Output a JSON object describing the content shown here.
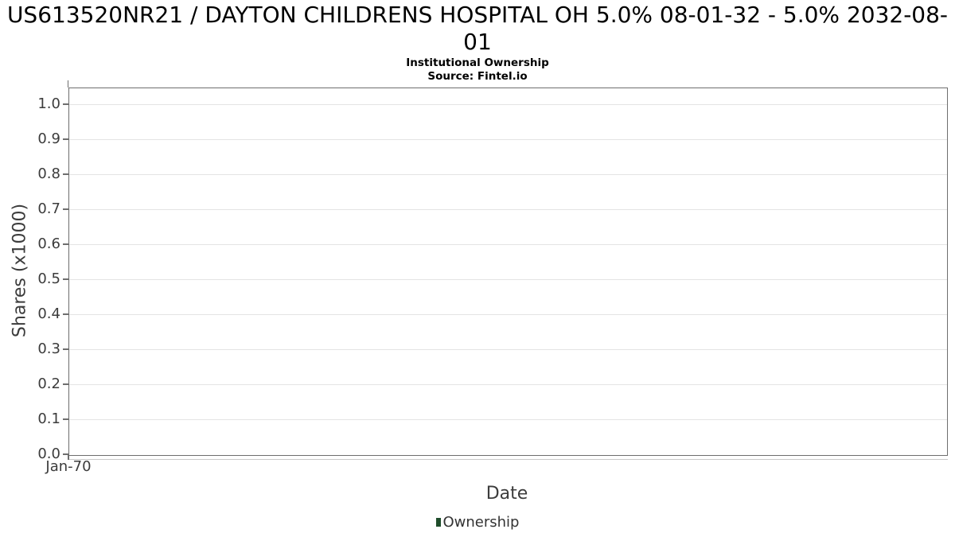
{
  "chart_data": {
    "type": "column",
    "title": "US613520NR21 / DAYTON CHILDRENS HOSPITAL OH 5.0% 08-01-32 - 5.0% 2032-08-01",
    "subtitle": "Institutional Ownership",
    "source": "Source: Fintel.io",
    "xlabel": "Date",
    "ylabel": "Shares (x1000)",
    "x_ticks": [
      "Jan-70"
    ],
    "y_ticks": [
      "1.0",
      "0.9",
      "0.8",
      "0.7",
      "0.6",
      "0.5",
      "0.4",
      "0.3",
      "0.2",
      "0.1",
      "0.0"
    ],
    "ylim": [
      0.0,
      1.0
    ],
    "grid": "horizontal",
    "legend_position": "bottom-center",
    "series": [
      {
        "name": "Ownership",
        "color": "#1f4d2b",
        "values": []
      }
    ]
  },
  "colors": {
    "background": "#ffffff",
    "title_text": "#000000",
    "axis_line": "#6e6e6e",
    "secondary_axis_line": "#c9c9c9",
    "grid_line": "#e4e4e4",
    "tick_text": "#3c3c3c",
    "legend_text": "#333333",
    "legend_marker": "#1f4d2b"
  }
}
